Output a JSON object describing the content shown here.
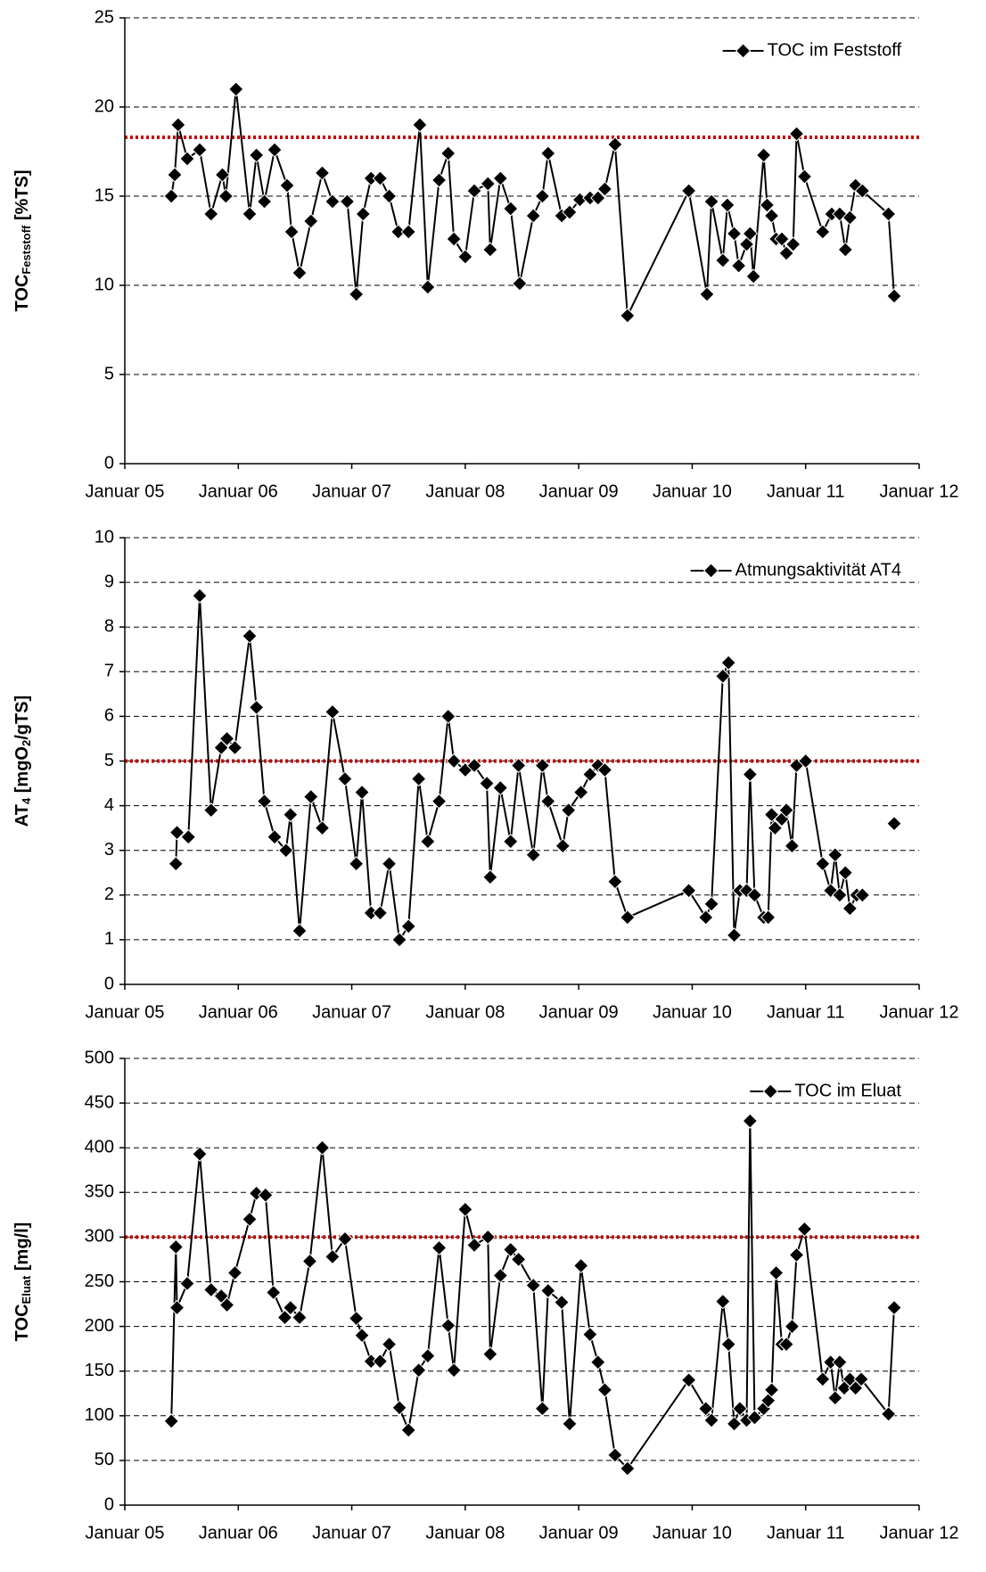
{
  "chart_data": [
    {
      "type": "line",
      "ylabel": [
        {
          "text": "TOC"
        },
        {
          "text": "Feststoff",
          "sub": true
        },
        {
          "text": " [%TS]"
        }
      ],
      "x": [
        2005.41,
        2005.44,
        2005.47,
        2005.55,
        2005.66,
        2005.76,
        2005.86,
        2005.89,
        2005.98,
        2006.1,
        2006.16,
        2006.23,
        2006.32,
        2006.43,
        2006.47,
        2006.54,
        2006.64,
        2006.74,
        2006.83,
        2006.96,
        2007.04,
        2007.1,
        2007.17,
        2007.25,
        2007.33,
        2007.41,
        2007.5,
        2007.6,
        2007.67,
        2007.77,
        2007.85,
        2007.9,
        2008.0,
        2008.08,
        2008.2,
        2008.22,
        2008.31,
        2008.4,
        2008.48,
        2008.6,
        2008.68,
        2008.73,
        2008.85,
        2008.92,
        2009.01,
        2009.1,
        2009.17,
        2009.23,
        2009.32,
        2009.43,
        2009.97,
        2010.13,
        2010.17,
        2010.27,
        2010.31,
        2010.37,
        2010.41,
        2010.48,
        2010.51,
        2010.54,
        2010.63,
        2010.66,
        2010.7,
        2010.74,
        2010.79,
        2010.83,
        2010.89,
        2010.92,
        2010.99,
        2011.15,
        2011.23,
        2011.3,
        2011.35,
        2011.39,
        2011.44,
        2011.5,
        2011.73,
        2011.78
      ],
      "series": [
        {
          "name": "TOC im Feststoff",
          "color": "#000000",
          "values": [
            15,
            16.2,
            19,
            17.1,
            17.6,
            14,
            16.2,
            15,
            21,
            14,
            17.3,
            14.7,
            17.6,
            15.6,
            13,
            10.7,
            13.6,
            16.3,
            14.7,
            14.7,
            9.5,
            14,
            16,
            16,
            15,
            13,
            13,
            19,
            9.9,
            15.9,
            17.4,
            12.6,
            11.6,
            15.3,
            15.7,
            12,
            16,
            14.3,
            10.1,
            13.9,
            15,
            17.4,
            13.9,
            14.1,
            14.8,
            14.9,
            14.9,
            15.4,
            17.9,
            8.3,
            15.3,
            9.5,
            14.7,
            11.4,
            14.5,
            12.9,
            11.1,
            12.3,
            12.9,
            10.5,
            17.3,
            14.5,
            13.9,
            12.6,
            12.6,
            11.8,
            12.3,
            18.5,
            16.1,
            13,
            14,
            14,
            12,
            13.8,
            15.6,
            15.3,
            14,
            9.4
          ]
        }
      ],
      "xlim": [
        2005,
        2012
      ],
      "xticks": [
        {
          "value": 2005,
          "label": "Januar 05"
        },
        {
          "value": 2006,
          "label": "Januar 06"
        },
        {
          "value": 2007,
          "label": "Januar 07"
        },
        {
          "value": 2008,
          "label": "Januar 08"
        },
        {
          "value": 2009,
          "label": "Januar 09"
        },
        {
          "value": 2010,
          "label": "Januar 10"
        },
        {
          "value": 2011,
          "label": "Januar 11"
        },
        {
          "value": 2012,
          "label": "Januar 12"
        }
      ],
      "ylim": [
        0,
        25
      ],
      "yticks": [
        0,
        5,
        10,
        15,
        20,
        25
      ],
      "grid": true,
      "legend": "upper right",
      "reference_line": {
        "value": 18.3,
        "color": "#c00000"
      }
    },
    {
      "type": "line",
      "ylabel": [
        {
          "text": "AT"
        },
        {
          "text": "4",
          "sub": true
        },
        {
          "text": " [mgO"
        },
        {
          "text": "2",
          "sub": true
        },
        {
          "text": "/gTS]"
        }
      ],
      "x": [
        2005.45,
        2005.46,
        2005.56,
        2005.66,
        2005.76,
        2005.85,
        2005.9,
        2005.97,
        2006.1,
        2006.16,
        2006.23,
        2006.32,
        2006.42,
        2006.46,
        2006.54,
        2006.64,
        2006.74,
        2006.83,
        2006.94,
        2007.04,
        2007.09,
        2007.17,
        2007.25,
        2007.33,
        2007.42,
        2007.5,
        2007.59,
        2007.67,
        2007.77,
        2007.85,
        2007.9,
        2008.0,
        2008.08,
        2008.19,
        2008.22,
        2008.31,
        2008.4,
        2008.47,
        2008.6,
        2008.68,
        2008.73,
        2008.86,
        2008.91,
        2009.02,
        2009.1,
        2009.17,
        2009.23,
        2009.32,
        2009.43,
        2009.97,
        2010.12,
        2010.17,
        2010.27,
        2010.32,
        2010.37,
        2010.42,
        2010.48,
        2010.51,
        2010.55,
        2010.63,
        2010.67,
        2010.7,
        2010.73,
        2010.79,
        2010.83,
        2010.88,
        2010.92,
        2011.0,
        2011.15,
        2011.22,
        2011.26,
        2011.3,
        2011.35,
        2011.39,
        2011.45,
        2011.5,
        2011.73,
        2011.78
      ],
      "series": [
        {
          "name": "Atmungsaktivität AT4",
          "color": "#000000",
          "values": [
            2.7,
            3.4,
            3.3,
            8.7,
            3.9,
            5.3,
            5.5,
            5.3,
            7.8,
            6.2,
            4.1,
            3.3,
            3.0,
            3.8,
            1.2,
            4.2,
            3.5,
            6.1,
            4.6,
            2.7,
            4.3,
            1.6,
            1.6,
            2.7,
            1.0,
            1.3,
            4.6,
            3.2,
            4.1,
            6.0,
            5.0,
            4.8,
            4.9,
            4.5,
            2.4,
            4.4,
            3.2,
            4.9,
            2.9,
            4.9,
            4.1,
            3.1,
            3.9,
            4.3,
            4.7,
            4.9,
            4.8,
            2.3,
            1.5,
            2.1,
            1.5,
            1.8,
            6.9,
            7.2,
            1.1,
            2.1,
            2.1,
            4.7,
            2.0,
            1.5,
            1.5,
            3.8,
            3.5,
            3.7,
            3.9,
            3.1,
            4.9,
            5.0,
            2.7,
            2.1,
            2.9,
            2.0,
            2.5,
            1.7,
            2.0,
            2.0,
            null,
            3.6
          ]
        }
      ],
      "xlim": [
        2005,
        2012
      ],
      "xticks": [
        {
          "value": 2005,
          "label": "Januar 05"
        },
        {
          "value": 2006,
          "label": "Januar 06"
        },
        {
          "value": 2007,
          "label": "Januar 07"
        },
        {
          "value": 2008,
          "label": "Januar 08"
        },
        {
          "value": 2009,
          "label": "Januar 09"
        },
        {
          "value": 2010,
          "label": "Januar 10"
        },
        {
          "value": 2011,
          "label": "Januar 11"
        },
        {
          "value": 2012,
          "label": "Januar 12"
        }
      ],
      "ylim": [
        0,
        10
      ],
      "yticks": [
        0,
        1,
        2,
        3,
        4,
        5,
        6,
        7,
        8,
        9,
        10
      ],
      "grid": true,
      "legend": "upper right",
      "reference_line": {
        "value": 5,
        "color": "#c00000"
      }
    },
    {
      "type": "line",
      "ylabel": [
        {
          "text": "TOC"
        },
        {
          "text": "Eluat",
          "sub": true
        },
        {
          "text": " [mg/l]"
        }
      ],
      "x": [
        2005.41,
        2005.45,
        2005.46,
        2005.55,
        2005.66,
        2005.76,
        2005.85,
        2005.9,
        2005.97,
        2006.1,
        2006.16,
        2006.24,
        2006.31,
        2006.41,
        2006.46,
        2006.54,
        2006.63,
        2006.74,
        2006.83,
        2006.94,
        2007.04,
        2007.09,
        2007.17,
        2007.25,
        2007.33,
        2007.42,
        2007.5,
        2007.59,
        2007.67,
        2007.77,
        2007.85,
        2007.9,
        2008.0,
        2008.08,
        2008.2,
        2008.22,
        2008.31,
        2008.4,
        2008.47,
        2008.6,
        2008.68,
        2008.73,
        2008.85,
        2008.92,
        2009.02,
        2009.1,
        2009.17,
        2009.23,
        2009.32,
        2009.43,
        2009.97,
        2010.12,
        2010.17,
        2010.27,
        2010.32,
        2010.37,
        2010.42,
        2010.48,
        2010.51,
        2010.55,
        2010.63,
        2010.67,
        2010.7,
        2010.74,
        2010.79,
        2010.83,
        2010.88,
        2010.92,
        2010.99,
        2011.15,
        2011.22,
        2011.26,
        2011.3,
        2011.34,
        2011.39,
        2011.44,
        2011.49,
        2011.73,
        2011.78
      ],
      "series": [
        {
          "name": "TOC im Eluat",
          "color": "#000000",
          "values": [
            94,
            289,
            221,
            248,
            393,
            241,
            234,
            224,
            260,
            320,
            349,
            347,
            238,
            210,
            221,
            210,
            273,
            400,
            278,
            298,
            209,
            190,
            161,
            161,
            180,
            109,
            84,
            151,
            167,
            288,
            201,
            151,
            331,
            291,
            300,
            169,
            257,
            286,
            275,
            246,
            108,
            240,
            227,
            91,
            268,
            191,
            160,
            129,
            56,
            41,
            140,
            108,
            95,
            228,
            180,
            91,
            108,
            95,
            430,
            98,
            108,
            117,
            129,
            260,
            180,
            180,
            200,
            280,
            309,
            141,
            160,
            120,
            160,
            131,
            141,
            131,
            141,
            102,
            221
          ]
        }
      ],
      "xlim": [
        2005,
        2012
      ],
      "xticks": [
        {
          "value": 2005,
          "label": "Januar 05"
        },
        {
          "value": 2006,
          "label": "Januar 06"
        },
        {
          "value": 2007,
          "label": "Januar 07"
        },
        {
          "value": 2008,
          "label": "Januar 08"
        },
        {
          "value": 2009,
          "label": "Januar 09"
        },
        {
          "value": 2010,
          "label": "Januar 10"
        },
        {
          "value": 2011,
          "label": "Januar 11"
        },
        {
          "value": 2012,
          "label": "Januar 12"
        }
      ],
      "ylim": [
        0,
        500
      ],
      "yticks": [
        0,
        50,
        100,
        150,
        200,
        250,
        300,
        350,
        400,
        450,
        500
      ],
      "grid": true,
      "legend": "upper right",
      "reference_line": {
        "value": 300,
        "color": "#c00000"
      }
    }
  ]
}
